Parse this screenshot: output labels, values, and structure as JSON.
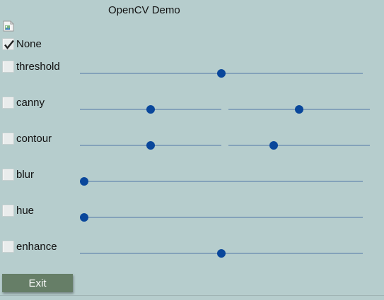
{
  "window": {
    "title": "OpenCV Demo"
  },
  "image_placeholder": {
    "icon": "broken-image-icon"
  },
  "options": [
    {
      "id": "none",
      "label": "None",
      "checked": true,
      "sliders": []
    },
    {
      "id": "threshold",
      "label": "threshold",
      "checked": false,
      "sliders": [
        0.5
      ]
    },
    {
      "id": "canny",
      "label": "canny",
      "checked": false,
      "sliders": [
        0.5,
        0.5
      ]
    },
    {
      "id": "contour",
      "label": "contour",
      "checked": false,
      "sliders": [
        0.5,
        0.32
      ]
    },
    {
      "id": "blur",
      "label": "blur",
      "checked": false,
      "sliders": [
        0.0
      ]
    },
    {
      "id": "hue",
      "label": "hue",
      "checked": false,
      "sliders": [
        0.0
      ]
    },
    {
      "id": "enhance",
      "label": "enhance",
      "checked": false,
      "sliders": [
        0.5
      ]
    }
  ],
  "exit_button": {
    "label": "Exit"
  },
  "colors": {
    "background": "#b6cdcd",
    "slider_track": "#84a2ba",
    "slider_thumb": "#0a479b",
    "exit_button": "#667e67"
  }
}
